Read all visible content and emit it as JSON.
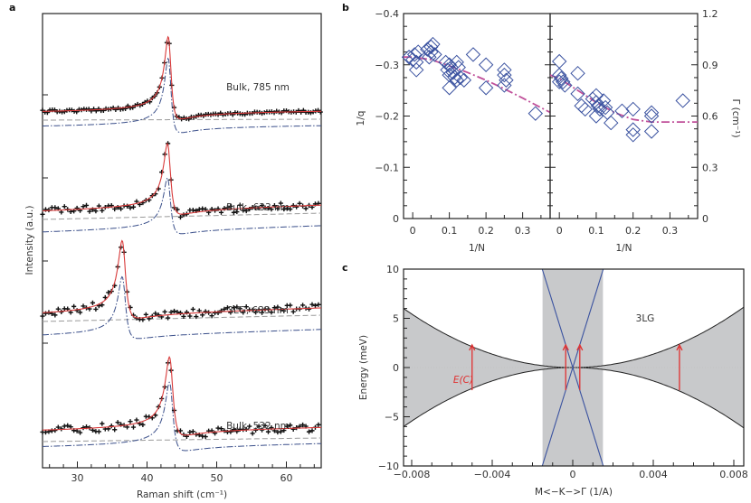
{
  "chart_data": [
    {
      "panel": "a",
      "type": "line",
      "xlabel": "Raman shift (cm⁻¹)",
      "ylabel": "Intensity (a.u.)",
      "xlim": [
        25,
        65
      ],
      "xticks": [
        30,
        40,
        50,
        60
      ],
      "legend_styles": {
        "data": "black crosses",
        "fit": "red solid line",
        "fano_component": "blue dash-dot line",
        "background": "grey dashed line"
      },
      "traces": [
        {
          "label": "Bulk, 785 nm",
          "peak_x": 43.2,
          "noise": 0.3,
          "baseline_left": 0.0,
          "baseline_right": -0.15,
          "peak_height": 1.0,
          "width": 0.55,
          "q": -3.2
        },
        {
          "label": "Bulk, 633 nm",
          "peak_x": 43.1,
          "noise": 0.8,
          "baseline_left": 0.0,
          "baseline_right": -0.45,
          "peak_height": 1.0,
          "width": 0.6,
          "q": -3.3
        },
        {
          "label": "3LG, 633 nm",
          "peak_x": 36.6,
          "noise": 0.9,
          "baseline_left": 0.0,
          "baseline_right": -0.45,
          "peak_height": 1.0,
          "width": 0.65,
          "q": -3.6
        },
        {
          "label": "Bulk, 532 nm",
          "peak_x": 43.4,
          "noise": 0.9,
          "baseline_left": 0.0,
          "baseline_right": -0.3,
          "peak_height": 1.0,
          "width": 0.65,
          "q": -3.4
        }
      ]
    },
    {
      "panel": "b-left",
      "type": "scatter",
      "xlabel": "1/N",
      "ylabel": "1/q",
      "xlim": [
        -0.025,
        0.375
      ],
      "ylim": [
        0,
        -0.4
      ],
      "xticks": [
        "0",
        "0.1",
        "0.2",
        "0.3"
      ],
      "yticks": [
        "0",
        "−0.1",
        "−0.2",
        "−0.3",
        "−0.4"
      ],
      "points": [
        [
          -0.01,
          -0.315
        ],
        [
          0.0,
          -0.31
        ],
        [
          0.005,
          -0.32
        ],
        [
          0.01,
          -0.305
        ],
        [
          0.015,
          -0.325
        ],
        [
          0.01,
          -0.29
        ],
        [
          0.04,
          -0.33
        ],
        [
          0.05,
          -0.335
        ],
        [
          0.055,
          -0.34
        ],
        [
          0.05,
          -0.325
        ],
        [
          0.06,
          -0.32
        ],
        [
          0.045,
          -0.315
        ],
        [
          0.09,
          -0.305
        ],
        [
          0.1,
          -0.3
        ],
        [
          0.095,
          -0.29
        ],
        [
          0.105,
          -0.295
        ],
        [
          0.11,
          -0.285
        ],
        [
          0.1,
          -0.28
        ],
        [
          0.12,
          -0.305
        ],
        [
          0.125,
          -0.295
        ],
        [
          0.115,
          -0.275
        ],
        [
          0.12,
          -0.27
        ],
        [
          0.13,
          -0.275
        ],
        [
          0.14,
          -0.27
        ],
        [
          0.1,
          -0.255
        ],
        [
          0.165,
          -0.32
        ],
        [
          0.2,
          -0.3
        ],
        [
          0.2,
          -0.255
        ],
        [
          0.25,
          -0.29
        ],
        [
          0.25,
          -0.28
        ],
        [
          0.255,
          -0.27
        ],
        [
          0.25,
          -0.26
        ],
        [
          0.335,
          -0.205
        ]
      ],
      "fit_line": {
        "x": [
          -0.025,
          0.0,
          0.05,
          0.1,
          0.15,
          0.2,
          0.25,
          0.3,
          0.375
        ],
        "y": [
          -0.315,
          -0.315,
          -0.31,
          -0.298,
          -0.285,
          -0.27,
          -0.253,
          -0.235,
          -0.207
        ]
      },
      "marker": "open diamond",
      "color": "#3a52a0",
      "fit_color": "#c0509a"
    },
    {
      "panel": "b-right",
      "type": "scatter",
      "xlabel": "1/N",
      "ylabel": "Γ (cm⁻¹)",
      "xlim": [
        -0.025,
        0.375
      ],
      "ylim": [
        0,
        1.2
      ],
      "xticks": [
        "0",
        "0.1",
        "0.2",
        "0.3"
      ],
      "yticks": [
        "0",
        "0.3",
        "0.6",
        "0.9",
        "1.2"
      ],
      "points": [
        [
          0.0,
          0.92
        ],
        [
          0.0,
          0.84
        ],
        [
          0.005,
          0.82
        ],
        [
          0.01,
          0.8
        ],
        [
          0.0,
          0.8
        ],
        [
          0.015,
          0.78
        ],
        [
          0.05,
          0.85
        ],
        [
          0.05,
          0.73
        ],
        [
          0.06,
          0.66
        ],
        [
          0.07,
          0.64
        ],
        [
          0.09,
          0.7
        ],
        [
          0.1,
          0.68
        ],
        [
          0.1,
          0.72
        ],
        [
          0.105,
          0.66
        ],
        [
          0.11,
          0.64
        ],
        [
          0.12,
          0.69
        ],
        [
          0.125,
          0.65
        ],
        [
          0.13,
          0.62
        ],
        [
          0.1,
          0.6
        ],
        [
          0.14,
          0.56
        ],
        [
          0.17,
          0.63
        ],
        [
          0.2,
          0.64
        ],
        [
          0.2,
          0.52
        ],
        [
          0.2,
          0.49
        ],
        [
          0.25,
          0.62
        ],
        [
          0.25,
          0.6
        ],
        [
          0.25,
          0.51
        ],
        [
          0.335,
          0.69
        ]
      ],
      "fit_line": {
        "x": [
          -0.025,
          0.0,
          0.05,
          0.1,
          0.15,
          0.2,
          0.25,
          0.3,
          0.375
        ],
        "y": [
          0.84,
          0.82,
          0.75,
          0.68,
          0.62,
          0.58,
          0.565,
          0.565,
          0.565
        ]
      },
      "marker": "open diamond",
      "color": "#3a52a0",
      "fit_color": "#c0509a"
    },
    {
      "panel": "c",
      "type": "area",
      "xlabel": "M<−K−>Γ (1/A)",
      "ylabel": "Energy (meV)",
      "xlim": [
        -0.0085,
        0.0085
      ],
      "ylim": [
        -10,
        10
      ],
      "xticks": [
        "−0.008",
        "−0.004",
        "0",
        "0.004",
        "0.008"
      ],
      "yticks": [
        "−10",
        "−5",
        "0",
        "5",
        "10"
      ],
      "annotations": [
        "3LG",
        "E(C)"
      ],
      "parabolic_band_coeff": 85000,
      "linear_band_slope": 6600,
      "linear_band_k_range": [
        -0.0015,
        0.0015
      ],
      "arrows_k": [
        -0.005,
        -0.00035,
        0.00035,
        0.0053
      ],
      "arrow_energy_half": 2.3,
      "shade_color": "#c8c9cb",
      "linear_band_color": "#3a52a0",
      "arrow_color": "#e03030"
    }
  ],
  "panel_letters": {
    "a": "a",
    "b": "b",
    "c": "c"
  }
}
